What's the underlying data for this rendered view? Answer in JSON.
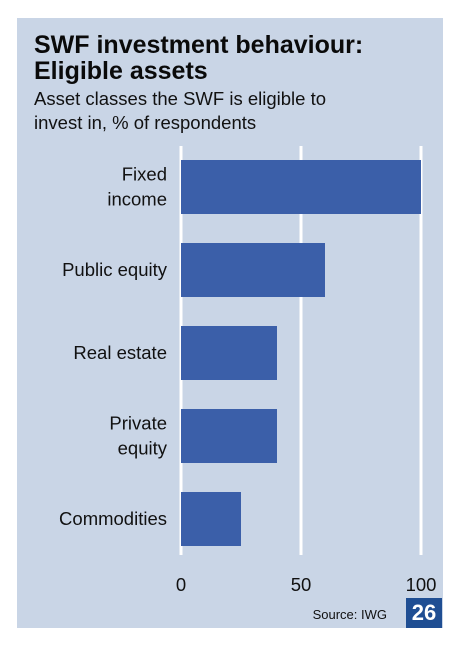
{
  "title_lines": [
    "SWF investment behaviour:",
    "Eligible assets"
  ],
  "subtitle_lines": [
    "Asset classes the SWF is eligible to",
    "invest in, % of respondents"
  ],
  "source": "Source: IWG",
  "page_number": "26",
  "colors": {
    "panel": "#c9d5e6",
    "bar": "#3b5fa9",
    "gridline": "#ffffff",
    "page_badge": "#1f4e93"
  },
  "chart_data": {
    "type": "bar",
    "orientation": "horizontal",
    "title": "SWF investment behaviour: Eligible assets",
    "subtitle": "Asset classes the SWF is eligible to invest in, % of respondents",
    "categories": [
      [
        "Fixed",
        "income"
      ],
      [
        "Public equity"
      ],
      [
        "Real estate"
      ],
      [
        "Private",
        "equity"
      ],
      [
        "Commodities"
      ]
    ],
    "values": [
      100,
      60,
      40,
      40,
      25
    ],
    "xlim": [
      0,
      100
    ],
    "xticks": [
      0,
      50,
      100
    ],
    "grid": true,
    "legend": "none"
  }
}
